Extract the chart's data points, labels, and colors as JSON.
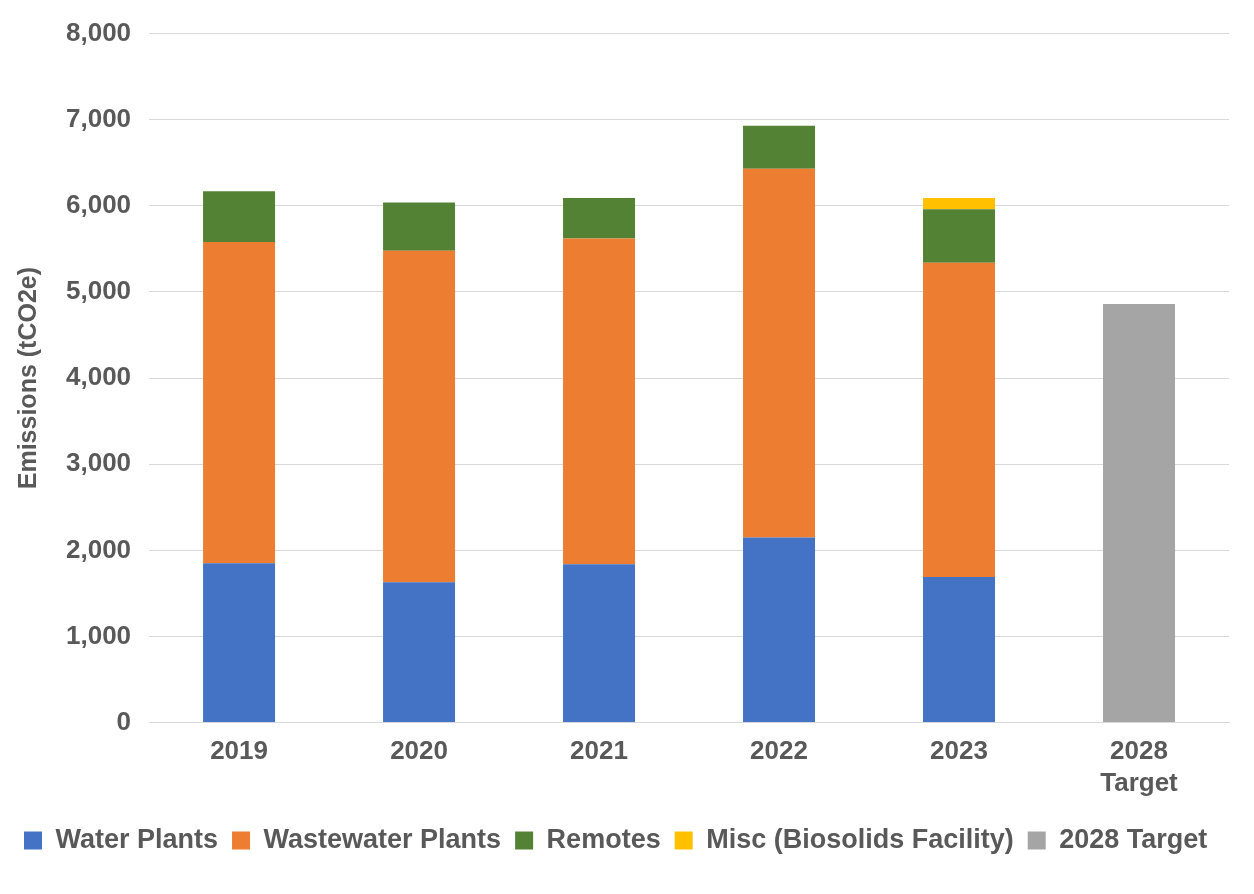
{
  "chart_data": {
    "type": "bar",
    "stacked": true,
    "ylabel": "Emissions (tCO2e)",
    "categories": [
      "2019",
      "2020",
      "2021",
      "2022",
      "2023",
      "2028\nTarget"
    ],
    "series": [
      {
        "name": "Water Plants",
        "color": "#4472c4",
        "values": [
          1850,
          1630,
          1840,
          2150,
          1690,
          null
        ]
      },
      {
        "name": "Wastewater Plants",
        "color": "#ed7d31",
        "values": [
          3730,
          3850,
          3780,
          4280,
          3650,
          null
        ]
      },
      {
        "name": "Remotes",
        "color": "#548235",
        "values": [
          590,
          560,
          470,
          500,
          620,
          null
        ]
      },
      {
        "name": "Misc (Biosolids Facility)",
        "color": "#ffc000",
        "values": [
          null,
          null,
          null,
          null,
          130,
          null
        ]
      },
      {
        "name": "2028 Target",
        "color": "#a5a5a5",
        "values": [
          null,
          null,
          null,
          null,
          null,
          4860
        ]
      }
    ],
    "ylim": [
      0,
      8000
    ],
    "yticks": [
      0,
      {
        "value": 1000,
        "label": "1,000"
      },
      {
        "value": 2000,
        "label": "2,000"
      },
      {
        "value": 3000,
        "label": "3,000"
      },
      {
        "value": 4000,
        "label": "4,000"
      },
      {
        "value": 5000,
        "label": "5,000"
      },
      {
        "value": 6000,
        "label": "6,000"
      },
      {
        "value": 7000,
        "label": "7,000"
      },
      {
        "value": 8000,
        "label": "8,000"
      }
    ],
    "grid": "y",
    "legend": "bottom"
  }
}
